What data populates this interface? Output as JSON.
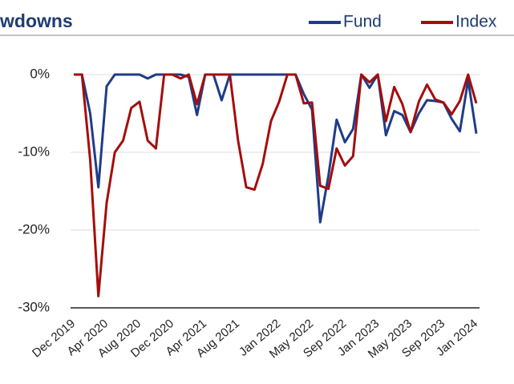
{
  "chart_data": {
    "type": "line",
    "title": "wdowns",
    "categories": [
      "Dec 2019",
      null,
      null,
      null,
      "Apr 2020",
      null,
      null,
      null,
      "Aug 2020",
      null,
      null,
      null,
      "Dec 2020",
      null,
      null,
      null,
      "Apr 2021",
      null,
      null,
      null,
      "Aug 2021",
      null,
      null,
      null,
      null,
      "Jan 2022",
      null,
      null,
      null,
      "May 2022",
      null,
      null,
      null,
      "Sep 2022",
      null,
      null,
      null,
      "Jan 2023",
      null,
      null,
      null,
      "May 2023",
      null,
      null,
      null,
      "Sep 2023",
      null,
      null,
      null,
      "Jan 2024"
    ],
    "series": [
      {
        "name": "Fund",
        "color": "#1f3c88",
        "values": [
          0,
          0,
          -5,
          -14.5,
          -1.5,
          0,
          0,
          0,
          0,
          -0.5,
          0,
          0,
          0,
          0,
          -0.3,
          -5.2,
          0,
          0,
          -3.3,
          0,
          0,
          0,
          0,
          0,
          0,
          0,
          0,
          0,
          -2.5,
          -4.5,
          -19,
          -13,
          -5.8,
          -8.7,
          -7,
          0,
          -1.7,
          0,
          -7.8,
          -4.7,
          -5.2,
          -7.4,
          -5,
          -3.3,
          -3.4,
          -3.6,
          -5.7,
          -7.3,
          -0.7,
          -7.6
        ]
      },
      {
        "name": "Index",
        "color": "#a50d0d",
        "values": [
          0,
          0,
          -11,
          -28.5,
          -16.5,
          -10,
          -8.5,
          -4.3,
          -3.5,
          -8.5,
          -9.5,
          0,
          0,
          -0.5,
          0,
          -3.8,
          0,
          0,
          0,
          0,
          -8.5,
          -14.5,
          -14.8,
          -11.5,
          -6,
          -3.5,
          0,
          0,
          -3.7,
          -3.6,
          -14.3,
          -14.7,
          -9.5,
          -11.7,
          -10.5,
          0,
          -1,
          0,
          -6,
          -1.6,
          -3.8,
          -7.4,
          -3.5,
          -1.3,
          -3.2,
          -3.6,
          -5.1,
          -3.4,
          0,
          -3.7
        ]
      }
    ],
    "ylim": [
      -30,
      0
    ],
    "yticks": [
      {
        "value": 0,
        "label": "0%"
      },
      {
        "value": -10,
        "label": "-10%"
      },
      {
        "value": -20,
        "label": "-20%"
      },
      {
        "value": -30,
        "label": "-30%"
      }
    ],
    "grid": true
  }
}
